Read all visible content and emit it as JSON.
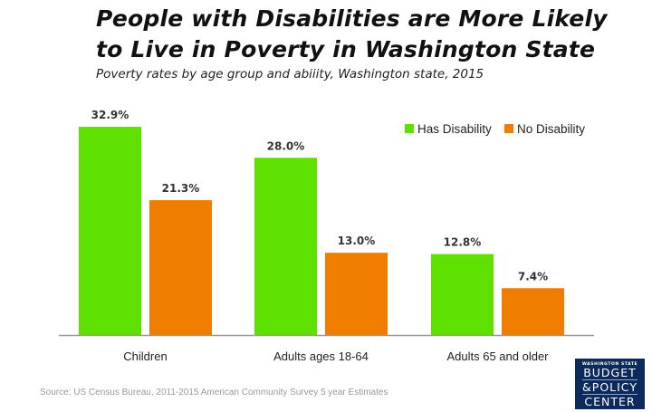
{
  "header": {
    "title_line1": "People with Disabilities are More Likely",
    "title_line2": "to Live in Poverty in Washington State",
    "subtitle": "Poverty rates by age group and abiiity, Washington state, 2015"
  },
  "footer": {
    "source": "Source: US Census Bureau, 2011-2015 American Community Survey 5 year Estimates"
  },
  "logo": {
    "line_small": "WASHINGTON STATE",
    "line1": "BUDGET",
    "line2": "&POLICY",
    "line3": "CENTER",
    "background": "#0d2a5c"
  },
  "chart_data": {
    "type": "bar",
    "title": "People with Disabilities are More Likely to Live in Poverty in Washington State",
    "subtitle": "Poverty rates by age group and abiiity, Washington state, 2015",
    "categories": [
      "Children",
      "Adults ages 18-64",
      "Adults 65 and older"
    ],
    "series": [
      {
        "name": "Has Disability",
        "color": "#5ee000",
        "values": [
          32.9,
          28.0,
          12.8
        ],
        "labels": [
          "32.9%",
          "28.0%",
          "12.8%"
        ]
      },
      {
        "name": "No Disability",
        "color": "#f07c00",
        "values": [
          21.3,
          13.0,
          7.4
        ],
        "labels": [
          "21.3%",
          "13.0%",
          "7.4%"
        ]
      }
    ],
    "xlabel": "",
    "ylabel": "",
    "ylim": [
      0,
      33
    ],
    "grid": false,
    "y_axis_visible": false,
    "legend": "top-right",
    "axis_color": "#9a9a9a"
  }
}
